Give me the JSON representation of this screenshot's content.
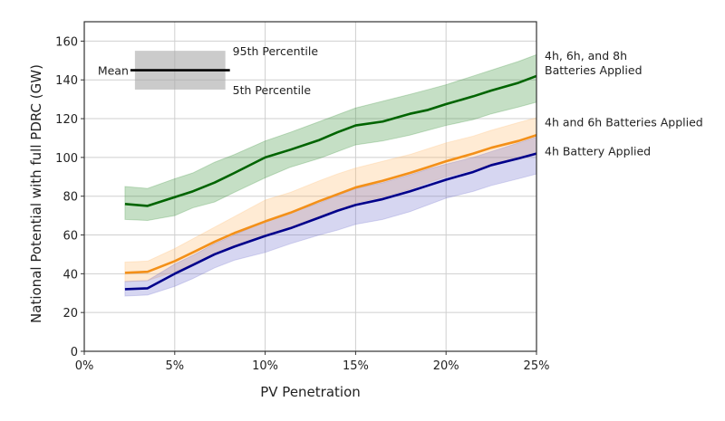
{
  "chart_data": {
    "type": "line",
    "title": "",
    "xlabel": "PV Penetration",
    "ylabel": "National Potential with full PDRC (GW)",
    "xlim": [
      0,
      25
    ],
    "ylim": [
      0,
      170
    ],
    "grid": true,
    "x_ticks": [
      0,
      5,
      10,
      15,
      20,
      25
    ],
    "x_tick_labels": [
      "0%",
      "5%",
      "10%",
      "15%",
      "20%",
      "25%"
    ],
    "y_ticks": [
      0,
      20,
      40,
      60,
      80,
      100,
      120,
      140,
      160
    ],
    "y_tick_labels": [
      "0",
      "20",
      "40",
      "60",
      "80",
      "100",
      "120",
      "140",
      "160"
    ],
    "x": [
      2.25,
      3.5,
      5,
      6,
      7.2,
      8.3,
      10,
      11.4,
      13,
      14,
      15,
      16.5,
      18,
      19,
      20,
      21.5,
      22.5,
      24,
      25
    ],
    "series": [
      {
        "name": "4h, 6h, and 8h Batteries Applied",
        "label_lines": [
          "4h, 6h, and 8h",
          "Batteries Applied"
        ],
        "color": "#006400",
        "band_color": "#2e8b2e",
        "mean": [
          76,
          75,
          79.5,
          82.5,
          87,
          92,
          100,
          104,
          109,
          113,
          116.5,
          118.5,
          122.5,
          124.5,
          127.5,
          131.5,
          134.5,
          138.5,
          142
        ],
        "p95": [
          85,
          84,
          89,
          92,
          97.5,
          101.5,
          108.5,
          113,
          118.5,
          122,
          125.5,
          129,
          132.5,
          135,
          137.5,
          142,
          145,
          149.5,
          153
        ],
        "p5": [
          68,
          67.5,
          70,
          74,
          77,
          82,
          89.5,
          95,
          99.5,
          103,
          106.5,
          108.5,
          111.5,
          114,
          116.5,
          119.5,
          122.5,
          126,
          128.5
        ]
      },
      {
        "name": "4h and 6h Batteries Applied",
        "label_lines": [
          "4h and 6h Batteries Applied"
        ],
        "color": "#f39019",
        "band_color": "#ffb866",
        "mean": [
          40.5,
          41,
          46.5,
          51,
          56.5,
          61,
          67,
          71.5,
          77.5,
          81,
          84.5,
          88,
          92,
          95,
          98,
          102,
          105,
          108.5,
          111.5
        ],
        "p95": [
          46,
          46.5,
          53,
          58,
          64,
          69.5,
          78,
          82,
          88,
          91.5,
          94.5,
          98,
          101.5,
          104.5,
          107.5,
          111,
          114,
          118,
          120.5
        ],
        "p5": [
          36,
          36.5,
          41,
          45,
          50,
          54.5,
          59.5,
          64,
          69.5,
          73,
          76.5,
          79.5,
          83.5,
          87,
          90,
          93.5,
          96.5,
          99,
          101.5
        ]
      },
      {
        "name": "4h Battery Applied",
        "label_lines": [
          "4h Battery Applied"
        ],
        "color": "#00008b",
        "band_color": "#6b6bcc",
        "mean": [
          32,
          32.5,
          40,
          44.5,
          50,
          54,
          59.5,
          63.5,
          69,
          72.5,
          75.5,
          78.5,
          82.5,
          85.5,
          88.5,
          92.5,
          96,
          99.5,
          102
        ],
        "p95": [
          36,
          36.5,
          45,
          49.5,
          55.5,
          60,
          67,
          71.5,
          76.5,
          80.5,
          84,
          87,
          91,
          94,
          96.5,
          100,
          103,
          107.5,
          110.5
        ],
        "p5": [
          28.5,
          29,
          33.5,
          37.5,
          43,
          47,
          51,
          55.5,
          60,
          62.5,
          65.5,
          68,
          72,
          75.5,
          79,
          82.5,
          85.5,
          89,
          91.5
        ]
      }
    ],
    "legend_key": {
      "mean_label": "Mean",
      "upper_label": "95th Percentile",
      "lower_label": "5th Percentile",
      "x_range": [
        2.8,
        7.8
      ],
      "line_x_range": [
        2.55,
        8.05
      ],
      "y_upper": 155,
      "y_lower": 135,
      "y_mean": 145
    }
  }
}
